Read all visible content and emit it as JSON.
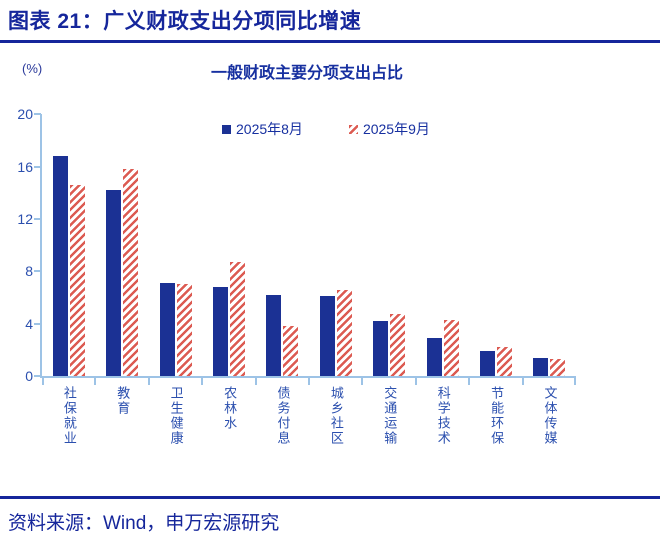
{
  "header": {
    "title": "图表 21：广义财政支出分项同比增速"
  },
  "footer": {
    "source": "资料来源：Wind，申万宏源研究"
  },
  "chart_data": {
    "type": "bar",
    "title": "一般财政主要分项支出占比",
    "unit_label": "(%)",
    "categories": [
      "社保就业",
      "教育",
      "卫生健康",
      "农林水",
      "债务付息",
      "城乡社区",
      "交通运输",
      "科学技术",
      "节能环保",
      "文体传媒"
    ],
    "series": [
      {
        "name": "2025年8月",
        "style": "solid",
        "color": "#1B3194",
        "values": [
          16.8,
          14.2,
          7.1,
          6.8,
          6.2,
          6.1,
          4.2,
          2.9,
          1.9,
          1.4
        ]
      },
      {
        "name": "2025年9月",
        "style": "hatched",
        "color": "#DC5B52",
        "values": [
          14.6,
          15.8,
          7.0,
          8.7,
          3.8,
          6.6,
          4.7,
          4.3,
          2.2,
          1.3
        ]
      }
    ],
    "ylim": [
      0,
      20
    ],
    "yticks": [
      0,
      4,
      8,
      12,
      16,
      20
    ],
    "grid": false,
    "legend_position": "top-center-inside",
    "colors": {
      "header_text": "#15269B",
      "axis_line": "#9DC3E6",
      "tick_label_text": "#2B4FAE"
    }
  }
}
